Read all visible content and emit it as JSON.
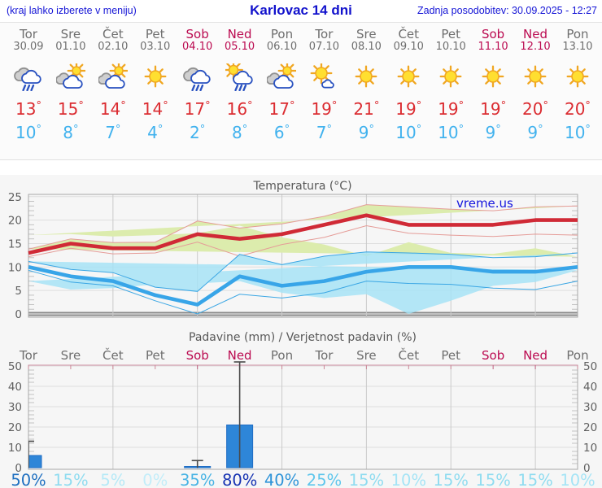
{
  "header": {
    "note": "(kraj lahko izberete v meniju)",
    "title": "Karlovac 14 dni",
    "updated": "Zadnja posodobitev: 30.09.2025 - 12:27"
  },
  "watermark": "vreme.us",
  "colors": {
    "header_blue": "#1515d6",
    "day_gray": "#6e6e6e",
    "weekend_red": "#bb0a50",
    "high_temp_red": "#db2c31",
    "low_temp_blue": "#41b2ee",
    "max_line": "#d02a36",
    "max_band": "#dcecad",
    "max_band_edge": "#e59c98",
    "min_line": "#38a5e8",
    "min_band": "#a2e2f6",
    "bar_blue": "#2e86d8",
    "panel_bg": "#f6f6f6"
  },
  "days": [
    {
      "name": "Tor",
      "date": "30.09",
      "weekend": false,
      "icon": "rain-icon",
      "high": "13°",
      "low": "10°"
    },
    {
      "name": "Sre",
      "date": "01.10",
      "weekend": false,
      "icon": "sun-cloud-icon",
      "high": "15°",
      "low": "8°"
    },
    {
      "name": "Čet",
      "date": "02.10",
      "weekend": false,
      "icon": "sun-cloud-icon",
      "high": "14°",
      "low": "7°"
    },
    {
      "name": "Pet",
      "date": "03.10",
      "weekend": false,
      "icon": "sun-icon",
      "high": "14°",
      "low": "4°"
    },
    {
      "name": "Sob",
      "date": "04.10",
      "weekend": true,
      "icon": "rain-icon",
      "high": "17°",
      "low": "2°"
    },
    {
      "name": "Ned",
      "date": "05.10",
      "weekend": true,
      "icon": "sun-rain-icon",
      "high": "16°",
      "low": "8°"
    },
    {
      "name": "Pon",
      "date": "06.10",
      "weekend": false,
      "icon": "sun-cloud-icon",
      "high": "17°",
      "low": "6°"
    },
    {
      "name": "Tor",
      "date": "07.10",
      "weekend": false,
      "icon": "mostly-sun-icon",
      "high": "19°",
      "low": "7°"
    },
    {
      "name": "Sre",
      "date": "08.10",
      "weekend": false,
      "icon": "sun-icon",
      "high": "21°",
      "low": "9°"
    },
    {
      "name": "Čet",
      "date": "09.10",
      "weekend": false,
      "icon": "sun-icon",
      "high": "19°",
      "low": "10°"
    },
    {
      "name": "Pet",
      "date": "10.10",
      "weekend": false,
      "icon": "sun-icon",
      "high": "19°",
      "low": "10°"
    },
    {
      "name": "Sob",
      "date": "11.10",
      "weekend": true,
      "icon": "sun-icon",
      "high": "19°",
      "low": "9°"
    },
    {
      "name": "Ned",
      "date": "12.10",
      "weekend": true,
      "icon": "sun-icon",
      "high": "20°",
      "low": "9°"
    },
    {
      "name": "Pon",
      "date": "13.10",
      "weekend": false,
      "icon": "sun-icon",
      "high": "20°",
      "low": "10°"
    }
  ],
  "chart_data": [
    {
      "type": "line",
      "title": "Temperatura (°C)",
      "categories": [
        "Tor",
        "Sre",
        "Čet",
        "Pet",
        "Sob",
        "Ned",
        "Pon",
        "Tor",
        "Sre",
        "Čet",
        "Pet",
        "Sob",
        "Ned",
        "Pon"
      ],
      "ylim": [
        0,
        25
      ],
      "y_ticks": [
        0,
        5,
        10,
        15,
        20,
        25
      ],
      "grid": true,
      "series": [
        {
          "name": "max-temp",
          "color": "#d02a36",
          "values": [
            13,
            15,
            14,
            14,
            17,
            16,
            17,
            19,
            21,
            19,
            19,
            19,
            20,
            20
          ]
        },
        {
          "name": "max-temp-range-upper",
          "color": "#dcecad",
          "values": [
            13.8,
            16,
            15.2,
            15.3,
            19.8,
            18.3,
            19.2,
            20.8,
            23.3,
            22.8,
            22.3,
            22,
            22.8,
            23
          ]
        },
        {
          "name": "max-temp-range-lower",
          "color": "#dcecad",
          "values": [
            12.2,
            14,
            12.8,
            13,
            15.3,
            12.3,
            14.8,
            16.3,
            18.8,
            17.2,
            16.8,
            16.5,
            17,
            16.8
          ]
        },
        {
          "name": "min-temp",
          "color": "#38a5e8",
          "values": [
            10,
            8,
            7,
            4,
            2,
            8,
            6,
            7,
            9,
            10,
            10,
            9,
            9,
            10
          ]
        },
        {
          "name": "min-temp-range-upper",
          "color": "#a2e2f6",
          "values": [
            11.2,
            9.5,
            8.8,
            5.7,
            4.8,
            12.7,
            10.5,
            12.3,
            13.2,
            13,
            12.7,
            12,
            12.2,
            13
          ]
        },
        {
          "name": "min-temp-range-lower",
          "color": "#a2e2f6",
          "values": [
            9.3,
            6.8,
            6,
            2.8,
            0,
            4.2,
            3.4,
            4.5,
            7,
            6.5,
            6.3,
            5.5,
            5.2,
            7
          ]
        }
      ]
    },
    {
      "type": "bar",
      "title": "Padavine (mm) / Verjetnost padavin (%)",
      "categories": [
        "Tor",
        "Sre",
        "Čet",
        "Pet",
        "Sob",
        "Ned",
        "Pon",
        "Tor",
        "Sre",
        "Čet",
        "Pet",
        "Sob",
        "Ned",
        "Pon"
      ],
      "ylim": [
        0,
        50
      ],
      "y_ticks": [
        0,
        10,
        20,
        30,
        40,
        50
      ],
      "bar_color": "#2e86d8",
      "values": [
        6,
        0,
        0,
        0,
        0.6,
        21,
        0,
        0,
        0,
        0,
        0,
        0,
        0,
        0
      ],
      "whisker_max": [
        13,
        0,
        0,
        0,
        3.5,
        52,
        0,
        0,
        0,
        0,
        0,
        0,
        0,
        0
      ],
      "probabilities": [
        {
          "label": "50%",
          "color": "#1e6fc0"
        },
        {
          "label": "15%",
          "color": "#8fdcf0"
        },
        {
          "label": "5%",
          "color": "#b5e9f7"
        },
        {
          "label": "0%",
          "color": "#c2edf9"
        },
        {
          "label": "35%",
          "color": "#49b4e4"
        },
        {
          "label": "80%",
          "color": "#1632b2"
        },
        {
          "label": "40%",
          "color": "#2d93d8"
        },
        {
          "label": "25%",
          "color": "#5ec6ec"
        },
        {
          "label": "15%",
          "color": "#8fdcf0"
        },
        {
          "label": "10%",
          "color": "#a5e4f6"
        },
        {
          "label": "15%",
          "color": "#8fdcf0"
        },
        {
          "label": "15%",
          "color": "#8fdcf0"
        },
        {
          "label": "15%",
          "color": "#8fdcf0"
        },
        {
          "label": "10%",
          "color": "#a5e4f6"
        }
      ]
    }
  ]
}
